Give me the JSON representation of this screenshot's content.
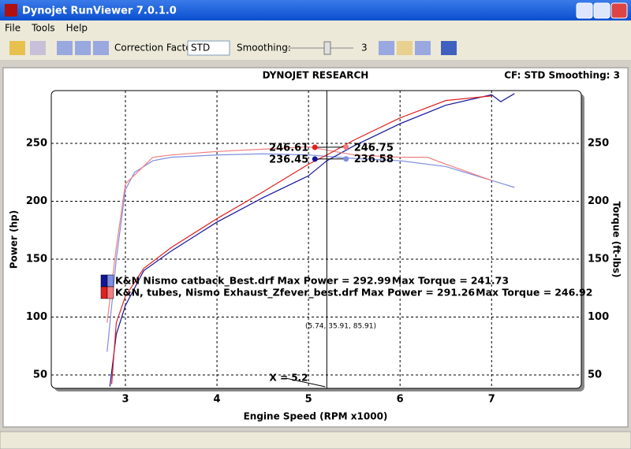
{
  "window": {
    "title": "Dynojet RunViewer 7.0.1.0"
  },
  "menu": [
    "File",
    "Tools",
    "Help"
  ],
  "toolbar": {
    "correction_label": "Correction Factor:",
    "correction_value": "STD",
    "smoothing_label": "Smoothing:",
    "smoothing_value": 3
  },
  "chart_data": {
    "type": "line",
    "title": "DYNOJET RESEARCH",
    "subtitle": "CF: STD  Smoothing: 3",
    "x_label": "Engine Speed (RPM x1000)",
    "y_label": "Power (hp)",
    "y2_label": "Torque (ft-lbs)",
    "xlim": [
      2.19,
      7.98
    ],
    "xticks": [
      3,
      4,
      5,
      6,
      7
    ],
    "ylim": [
      38.4,
      295.6
    ],
    "yticks": [
      50,
      100,
      150,
      200,
      250
    ],
    "y2lim": [
      38.4,
      295.6
    ],
    "y2ticks": [
      50,
      100,
      150,
      200,
      250
    ],
    "grid": true,
    "runs": [
      {
        "name": "K&N Nismo catback_Best.drf",
        "max_power_caption": "Max Power =",
        "max_power": 292.99,
        "max_torque_caption": "Max Torque =",
        "max_torque": 241.73,
        "power": {
          "color": "#14149a",
          "x": [
            2.83,
            2.9,
            3.0,
            3.2,
            3.5,
            4.0,
            4.5,
            5.0,
            5.2,
            5.5,
            6.0,
            6.5,
            7.0,
            7.1,
            7.25
          ],
          "values": [
            40,
            85,
            110,
            140,
            157,
            182,
            203,
            222,
            235,
            248,
            267,
            283,
            292,
            286,
            293
          ]
        },
        "torque": {
          "color": "#7f8fe0",
          "axis": "y2",
          "x": [
            2.8,
            2.9,
            3.0,
            3.1,
            3.3,
            3.5,
            4.0,
            4.5,
            5.0,
            5.5,
            6.0,
            6.5,
            7.0,
            7.25
          ],
          "values": [
            70,
            150,
            210,
            225,
            235,
            238,
            240,
            241,
            240,
            237,
            235,
            230,
            218,
            212
          ]
        }
      },
      {
        "name": "K&N, tubes, Nismo Exhaust_Zfever_best.drf",
        "max_power_caption": "Max Power =",
        "max_power": 291.26,
        "max_torque_caption": "Max Torque =",
        "max_torque": 246.92,
        "power": {
          "color": "#e02020",
          "x": [
            2.85,
            2.9,
            3.0,
            3.2,
            3.5,
            4.0,
            4.5,
            5.0,
            5.2,
            5.5,
            6.0,
            6.5,
            7.0
          ],
          "values": [
            42,
            95,
            118,
            142,
            160,
            185,
            208,
            232,
            240,
            253,
            272,
            287,
            291
          ]
        },
        "torque": {
          "color": "#f08080",
          "axis": "y2",
          "x": [
            2.8,
            2.9,
            3.0,
            3.3,
            3.5,
            4.0,
            4.5,
            5.0,
            5.5,
            6.0,
            6.3,
            6.5,
            7.0
          ],
          "values": [
            95,
            160,
            215,
            238,
            240,
            243,
            245,
            247,
            240,
            238,
            238,
            232,
            218
          ]
        }
      }
    ],
    "cursor": {
      "x": 5.2,
      "label": "X = 5.2"
    },
    "cursor_values": [
      {
        "x": 5.07,
        "value": 246.61,
        "color": "#e02020"
      },
      {
        "x": 5.41,
        "value": 246.75,
        "color": "#f08080"
      },
      {
        "x": 5.07,
        "value": 236.45,
        "color": "#14149a"
      },
      {
        "x": 5.41,
        "value": 236.58,
        "color": "#7f8fe0"
      }
    ],
    "readout": "(5.74, 35.91, 85.91)"
  }
}
